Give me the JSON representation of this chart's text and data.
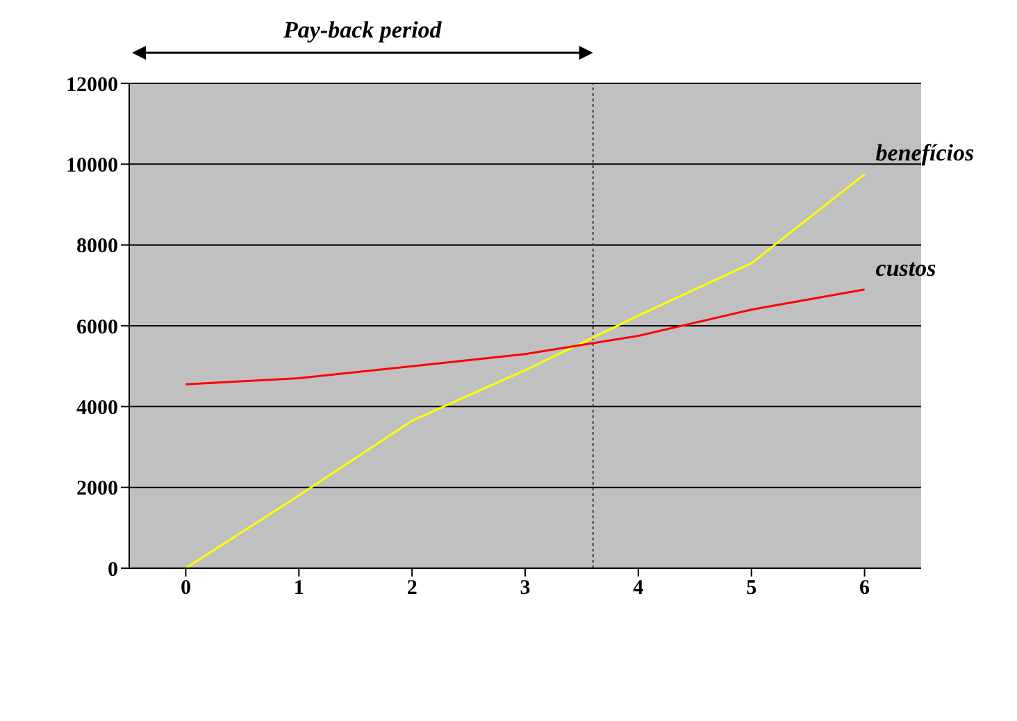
{
  "chart_data": {
    "type": "line",
    "x": [
      0,
      1,
      2,
      3,
      4,
      5,
      6
    ],
    "series": [
      {
        "name": "benefícios",
        "color": "#ffff00",
        "values": [
          0,
          1800,
          3650,
          4900,
          6250,
          7550,
          9750
        ]
      },
      {
        "name": "custos",
        "color": "#ff0000",
        "values": [
          4550,
          4700,
          5000,
          5300,
          5750,
          6400,
          6900
        ]
      }
    ],
    "xlim": [
      -0.5,
      6.5
    ],
    "xticks": [
      0,
      1,
      2,
      3,
      4,
      5,
      6
    ],
    "ylim": [
      0,
      12000
    ],
    "yticks": [
      0,
      2000,
      4000,
      6000,
      8000,
      10000,
      12000
    ],
    "grid": "y",
    "marker": "none",
    "ref_lines": [
      {
        "axis": "x",
        "value": 3.6,
        "color": "#404040",
        "line_style": "dotted"
      }
    ],
    "annotations": [
      "Pay-back period"
    ]
  }
}
